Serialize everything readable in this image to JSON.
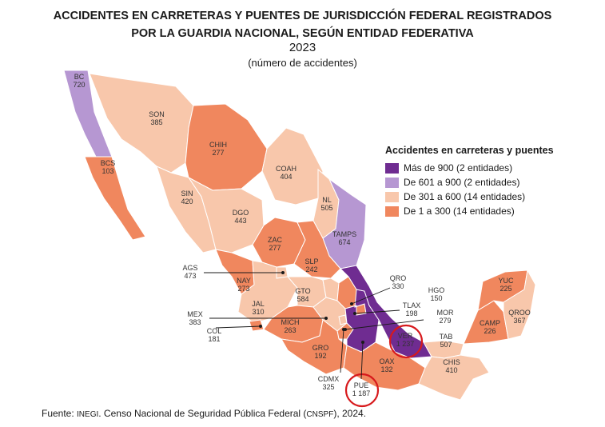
{
  "title_line1": "ACCIDENTES EN CARRETERAS Y PUENTES DE JURISDICCIÓN FEDERAL REGISTRADOS",
  "title_line2": "POR LA GUARDIA NACIONAL, SEGÚN ENTIDAD FEDERATIVA",
  "year": "2023",
  "unit": "(número de accidentes)",
  "legend": {
    "title": "Accidentes en carreteras y puentes",
    "items": [
      {
        "label": "Más de 900 (2 entidades)",
        "color": "#6f2c91"
      },
      {
        "label": "De 601 a 900 (2 entidades)",
        "color": "#b697d2"
      },
      {
        "label": "De 301 a 600 (14 entidades)",
        "color": "#f8c7ab"
      },
      {
        "label": "De 1 a 300 (14 entidades)",
        "color": "#f0875e"
      }
    ]
  },
  "states": [
    {
      "abbr": "BC",
      "value": "720"
    },
    {
      "abbr": "BCS",
      "value": "103"
    },
    {
      "abbr": "SON",
      "value": "385"
    },
    {
      "abbr": "CHIH",
      "value": "277"
    },
    {
      "abbr": "COAH",
      "value": "404"
    },
    {
      "abbr": "SIN",
      "value": "420"
    },
    {
      "abbr": "DGO",
      "value": "443"
    },
    {
      "abbr": "NL",
      "value": "505"
    },
    {
      "abbr": "TAMPS",
      "value": "674"
    },
    {
      "abbr": "ZAC",
      "value": "277"
    },
    {
      "abbr": "SLP",
      "value": "242"
    },
    {
      "abbr": "AGS",
      "value": "473"
    },
    {
      "abbr": "NAY",
      "value": "273"
    },
    {
      "abbr": "GTO",
      "value": "584"
    },
    {
      "abbr": "QRO",
      "value": "330"
    },
    {
      "abbr": "HGO",
      "value": "150"
    },
    {
      "abbr": "JAL",
      "value": "310"
    },
    {
      "abbr": "MEX",
      "value": "383"
    },
    {
      "abbr": "TLAX",
      "value": "198"
    },
    {
      "abbr": "MOR",
      "value": "279"
    },
    {
      "abbr": "COL",
      "value": "181"
    },
    {
      "abbr": "MICH",
      "value": "263"
    },
    {
      "abbr": "VER",
      "value": "1 237"
    },
    {
      "abbr": "GRO",
      "value": "192"
    },
    {
      "abbr": "TAB",
      "value": "507"
    },
    {
      "abbr": "YUC",
      "value": "225"
    },
    {
      "abbr": "QROO",
      "value": "367"
    },
    {
      "abbr": "CAMP",
      "value": "226"
    },
    {
      "abbr": "OAX",
      "value": "132"
    },
    {
      "abbr": "CHIS",
      "value": "410"
    },
    {
      "abbr": "CDMX",
      "value": "325"
    },
    {
      "abbr": "PUE",
      "value": "1 187"
    }
  ],
  "source": {
    "prefix": "Fuente: ",
    "org": "INEGI",
    "text1": ". Censo Nacional de Seguridad Pública Federal (",
    "abbr": "CNSPF",
    "text2": "), 2024."
  }
}
